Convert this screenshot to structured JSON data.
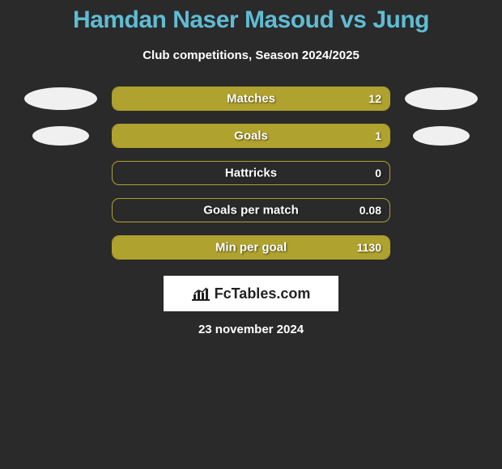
{
  "title": {
    "text": "Hamdan Naser Masoud vs Jung",
    "color": "#5fbcd3",
    "fontsize": 30
  },
  "subtitle": {
    "text": "Club competitions, Season 2024/2025",
    "color": "#ffffff",
    "fontsize": 15
  },
  "chart": {
    "bar_track_width": 344,
    "bar_track_height": 30,
    "bar_border_color": "#b0a22e",
    "fill_color": "#b0a22e",
    "text_color": "#ffffff",
    "ellipse_color": "#f0f0f0",
    "rows": [
      {
        "label": "Matches",
        "value": "12",
        "fill_pct": 100,
        "left_ellipse": "large",
        "right_ellipse": "large"
      },
      {
        "label": "Goals",
        "value": "1",
        "fill_pct": 100,
        "left_ellipse": "small",
        "right_ellipse": "small"
      },
      {
        "label": "Hattricks",
        "value": "0",
        "fill_pct": 0,
        "left_ellipse": "none",
        "right_ellipse": "none"
      },
      {
        "label": "Goals per match",
        "value": "0.08",
        "fill_pct": 0,
        "left_ellipse": "none",
        "right_ellipse": "none"
      },
      {
        "label": "Min per goal",
        "value": "1130",
        "fill_pct": 100,
        "left_ellipse": "none",
        "right_ellipse": "none"
      }
    ]
  },
  "footer": {
    "logo_text": "FcTables.com",
    "logo_bg": "#ffffff",
    "logo_text_color": "#222222",
    "date": "23 november 2024",
    "date_color": "#ffffff"
  },
  "background_color": "#2a2a2a"
}
